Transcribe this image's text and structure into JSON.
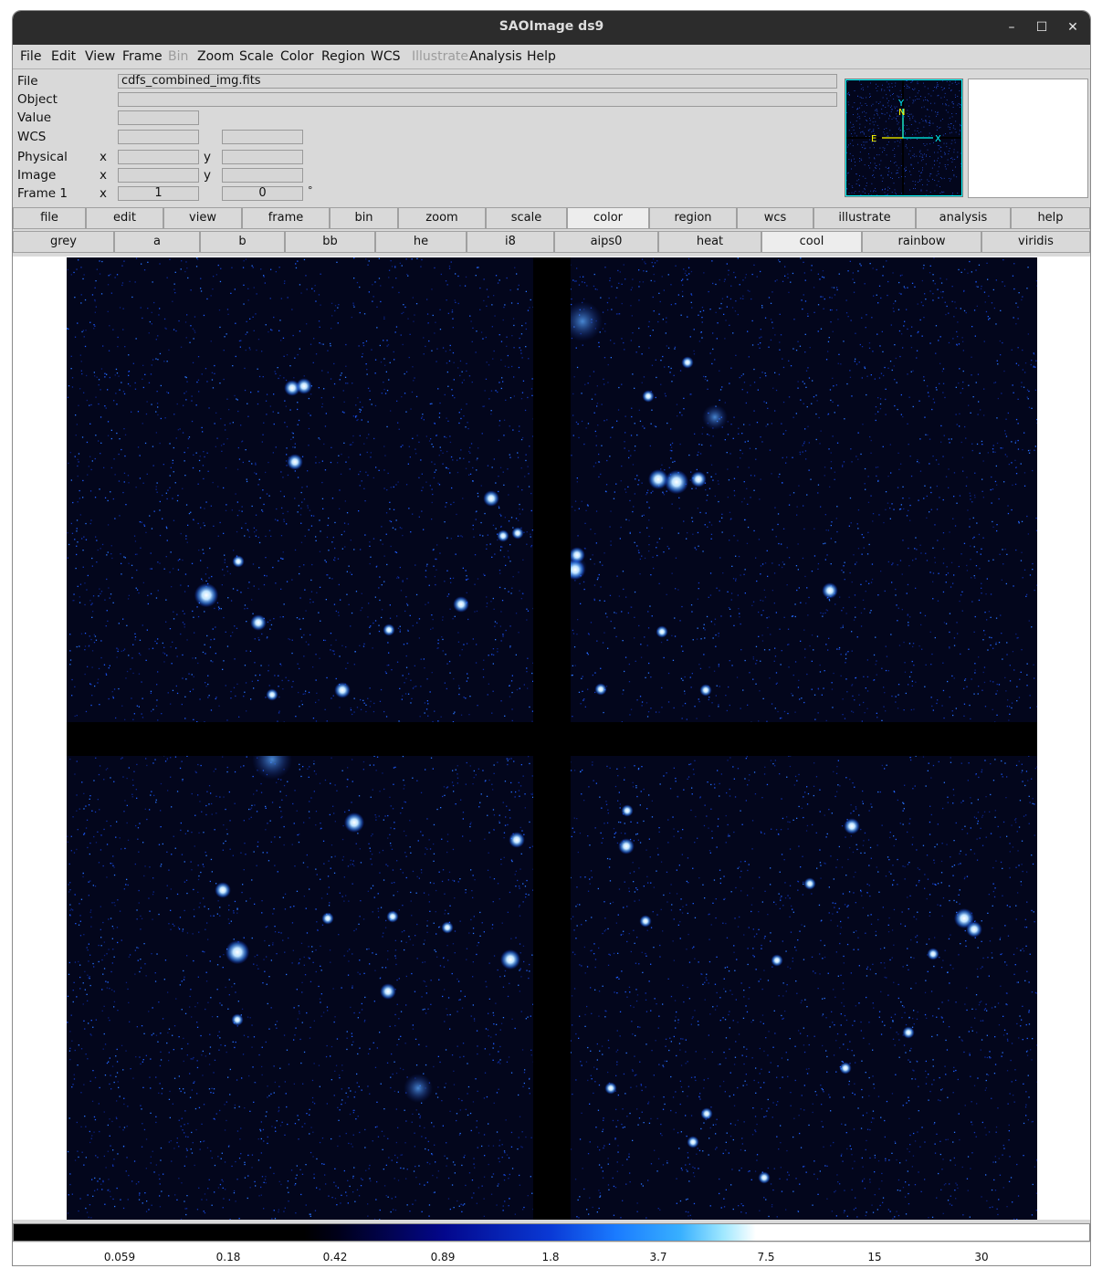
{
  "window": {
    "title": "SAOImage ds9",
    "controls": [
      "–",
      "☐",
      "✕"
    ]
  },
  "menubar": [
    "File",
    "Edit",
    "View",
    "Frame",
    "Bin",
    "Zoom",
    "Scale",
    "Color",
    "Region",
    "WCS",
    "Illustrate",
    "Analysis",
    "Help"
  ],
  "menubar_disabled": [
    "Bin",
    "Illustrate"
  ],
  "info": {
    "file_label": "File",
    "file_value": "cdfs_combined_img.fits",
    "object_label": "Object",
    "object_value": "",
    "value_label": "Value",
    "value_value": "",
    "wcs_label": "WCS",
    "wcs_value1": "",
    "wcs_value2": "",
    "physical_label": "Physical",
    "physical_x_label": "x",
    "physical_y_label": "y",
    "physical_x": "",
    "physical_y": "",
    "image_label": "Image",
    "image_x_label": "x",
    "image_y_label": "y",
    "image_x": "",
    "image_y": "",
    "frame_label": "Frame 1",
    "frame_x_label": "x",
    "frame_value1": "1",
    "frame_value2": "0",
    "frame_unit": "°"
  },
  "panner": {
    "axis_y": "Y",
    "axis_n": "N",
    "axis_e": "E",
    "axis_x": "X"
  },
  "buttonbar": [
    "file",
    "edit",
    "view",
    "frame",
    "bin",
    "zoom",
    "scale",
    "color",
    "region",
    "wcs",
    "illustrate",
    "analysis",
    "help"
  ],
  "buttonbar_selected": "color",
  "colormaps": [
    "grey",
    "a",
    "b",
    "bb",
    "he",
    "i8",
    "aips0",
    "heat",
    "cool",
    "rainbow",
    "viridis"
  ],
  "colormap_selected": "cool",
  "colorbar_ticks": [
    "0.059",
    "0.18",
    "0.42",
    "0.89",
    "1.8",
    "3.7",
    "7.5",
    "15",
    "30"
  ],
  "colors": {
    "sky_background": "#03061c",
    "source": "#cfe8ff",
    "chip_gap": "#000000"
  }
}
